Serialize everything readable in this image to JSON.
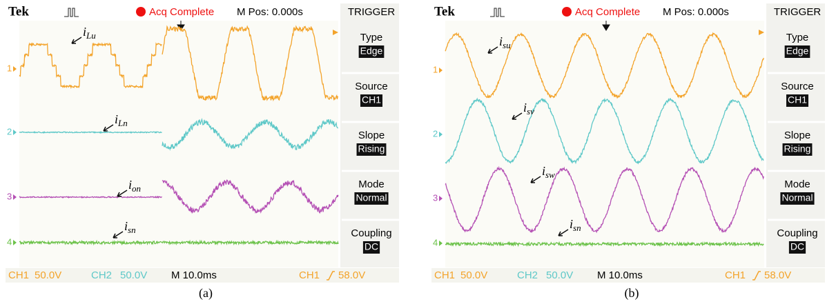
{
  "panels": [
    {
      "header": {
        "brand": "Tek",
        "status": "Acq Complete",
        "position": "M Pos: 0.000s"
      },
      "menu": {
        "title": "TRIGGER",
        "items": [
          {
            "label": "Type",
            "value": "Edge"
          },
          {
            "label": "Source",
            "value": "CH1"
          },
          {
            "label": "Slope",
            "value": "Rising"
          },
          {
            "label": "Mode",
            "value": "Normal"
          },
          {
            "label": "Coupling",
            "value": "DC"
          }
        ]
      },
      "channel_markers": [
        "1",
        "2",
        "3",
        "4"
      ],
      "trace_labels": [
        {
          "symbol": "i",
          "subscript": "Lu"
        },
        {
          "symbol": "i",
          "subscript": "Ln"
        },
        {
          "symbol": "i",
          "subscript": "on"
        },
        {
          "symbol": "i",
          "subscript": "sn"
        }
      ],
      "footer": {
        "ch1": "CH1",
        "ch1_scale": "50.0V",
        "ch2": "CH2",
        "ch2_scale": "50.0V",
        "timebase": "M 10.0ms",
        "trigger_source": "CH1",
        "trigger_level": "58.0V"
      },
      "caption": "(a)"
    },
    {
      "header": {
        "brand": "Tek",
        "status": "Acq Complete",
        "position": "M Pos: 0.000s"
      },
      "menu": {
        "title": "TRIGGER",
        "items": [
          {
            "label": "Type",
            "value": "Edge"
          },
          {
            "label": "Source",
            "value": "CH1"
          },
          {
            "label": "Slope",
            "value": "Rising"
          },
          {
            "label": "Mode",
            "value": "Normal"
          },
          {
            "label": "Coupling",
            "value": "DC"
          }
        ]
      },
      "channel_markers": [
        "1",
        "2",
        "3",
        "4"
      ],
      "trace_labels": [
        {
          "symbol": "i",
          "subscript": "su"
        },
        {
          "symbol": "i",
          "subscript": "sv"
        },
        {
          "symbol": "i",
          "subscript": "sw"
        },
        {
          "symbol": "i",
          "subscript": "sn"
        }
      ],
      "footer": {
        "ch1": "CH1",
        "ch1_scale": "50.0V",
        "ch2": "CH2",
        "ch2_scale": "50.0V",
        "timebase": "M 10.0ms",
        "trigger_source": "CH1",
        "trigger_level": "58.0V"
      },
      "caption": "(b)"
    }
  ]
}
